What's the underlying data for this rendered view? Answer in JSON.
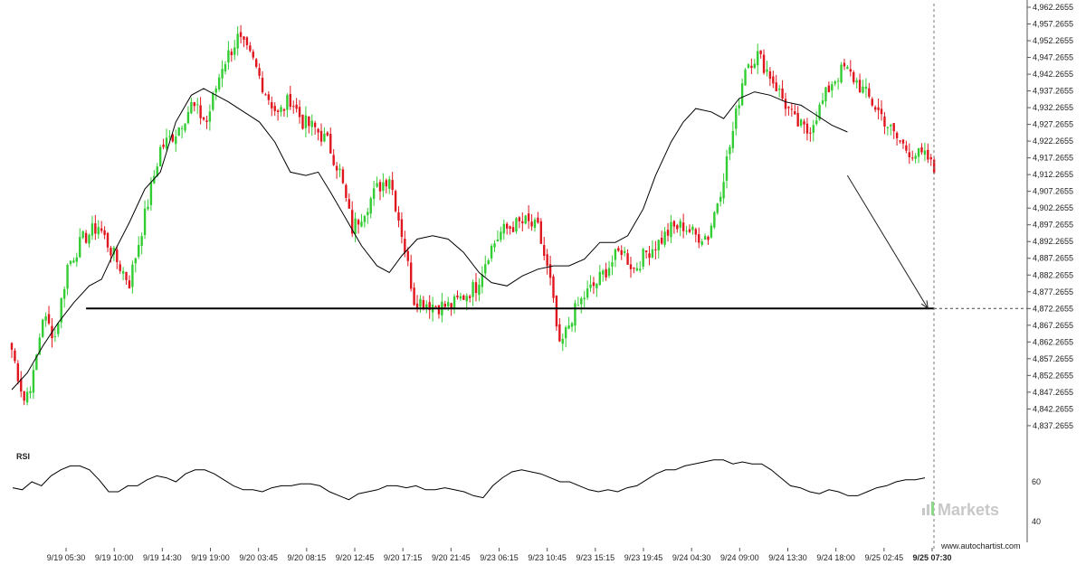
{
  "chart_data": {
    "type": "candlestick",
    "title": "",
    "price_axis": {
      "ylim": [
        4834.2655,
        4962.2655
      ],
      "ticks": [
        4837.2655,
        4842.2655,
        4847.2655,
        4852.2655,
        4857.2655,
        4862.2655,
        4867.2655,
        4872.2655,
        4877.2655,
        4882.2655,
        4887.2655,
        4892.2655,
        4897.2655,
        4902.2655,
        4907.2655,
        4912.2655,
        4917.2655,
        4922.2655,
        4927.2655,
        4932.2655,
        4937.2655,
        4942.2655,
        4947.2655,
        4952.2655,
        4957.2655,
        4962.2655
      ],
      "tick_labels": [
        "4,837.2655",
        "4,842.2655",
        "4,847.2655",
        "4,852.2655",
        "4,857.2655",
        "4,862.2655",
        "4,867.2655",
        "4,872.2655",
        "4,877.2655",
        "4,882.2655",
        "4,887.2655",
        "4,892.2655",
        "4,897.2655",
        "4,902.2655",
        "4,907.2655",
        "4,912.2655",
        "4,917.2655",
        "4,922.2655",
        "4,927.2655",
        "4,932.2655",
        "4,937.2655",
        "4,942.2655",
        "4,947.2655",
        "4,952.2655",
        "4,957.2655",
        "4,962.2655"
      ]
    },
    "time_axis": {
      "labels": [
        "9/19 05:30",
        "9/19 10:00",
        "9/19 14:30",
        "9/19 19:00",
        "9/20 03:45",
        "9/20 08:15",
        "9/20 12:45",
        "9/20 17:15",
        "9/20 21:45",
        "9/23 06:15",
        "9/23 10:45",
        "9/23 15:15",
        "9/23 19:45",
        "9/24 04:30",
        "9/24 09:00",
        "9/24 13:30",
        "9/24 18:00",
        "9/25 02:45",
        "9/25 07:30"
      ],
      "highlighted": "9/25 07:30",
      "bars_total": 300
    },
    "price_path": [
      [
        0,
        4860
      ],
      [
        4,
        4845
      ],
      [
        7,
        4852
      ],
      [
        10,
        4870
      ],
      [
        14,
        4864
      ],
      [
        18,
        4885
      ],
      [
        23,
        4893
      ],
      [
        28,
        4897
      ],
      [
        33,
        4888
      ],
      [
        38,
        4880
      ],
      [
        43,
        4900
      ],
      [
        48,
        4920
      ],
      [
        53,
        4925
      ],
      [
        58,
        4933
      ],
      [
        63,
        4928
      ],
      [
        68,
        4945
      ],
      [
        73,
        4953
      ],
      [
        78,
        4946
      ],
      [
        82,
        4937
      ],
      [
        86,
        4930
      ],
      [
        90,
        4935
      ],
      [
        94,
        4928
      ],
      [
        98,
        4926
      ],
      [
        102,
        4922
      ],
      [
        106,
        4913
      ],
      [
        110,
        4896
      ],
      [
        114,
        4902
      ],
      [
        118,
        4908
      ],
      [
        122,
        4912
      ],
      [
        126,
        4895
      ],
      [
        130,
        4875
      ],
      [
        134,
        4874
      ],
      [
        138,
        4873
      ],
      [
        142,
        4873
      ],
      [
        146,
        4876
      ],
      [
        150,
        4879
      ],
      [
        154,
        4889
      ],
      [
        158,
        4895
      ],
      [
        162,
        4897
      ],
      [
        166,
        4898
      ],
      [
        170,
        4896
      ],
      [
        174,
        4880
      ],
      [
        177,
        4860
      ],
      [
        181,
        4870
      ],
      [
        185,
        4876
      ],
      [
        189,
        4880
      ],
      [
        193,
        4885
      ],
      [
        197,
        4890
      ],
      [
        201,
        4884
      ],
      [
        205,
        4889
      ],
      [
        209,
        4892
      ],
      [
        213,
        4896
      ],
      [
        217,
        4897
      ],
      [
        221,
        4894
      ],
      [
        225,
        4894
      ],
      [
        229,
        4908
      ],
      [
        233,
        4925
      ],
      [
        237,
        4945
      ],
      [
        241,
        4948
      ],
      [
        245,
        4942
      ],
      [
        249,
        4935
      ],
      [
        253,
        4928
      ],
      [
        257,
        4925
      ],
      [
        261,
        4932
      ],
      [
        265,
        4940
      ],
      [
        269,
        4944
      ],
      [
        273,
        4940
      ],
      [
        277,
        4935
      ],
      [
        281,
        4930
      ],
      [
        285,
        4924
      ],
      [
        289,
        4920
      ],
      [
        293,
        4918
      ],
      [
        296,
        4917
      ],
      [
        298,
        4913
      ]
    ],
    "moving_average": [
      [
        0,
        4848
      ],
      [
        5,
        4853
      ],
      [
        10,
        4861
      ],
      [
        15,
        4868
      ],
      [
        20,
        4874
      ],
      [
        25,
        4879
      ],
      [
        29,
        4881
      ],
      [
        33,
        4889
      ],
      [
        38,
        4898
      ],
      [
        43,
        4908
      ],
      [
        48,
        4913
      ],
      [
        53,
        4928
      ],
      [
        58,
        4936
      ],
      [
        62,
        4938
      ],
      [
        66,
        4936
      ],
      [
        70,
        4934
      ],
      [
        75,
        4931
      ],
      [
        80,
        4928
      ],
      [
        85,
        4922
      ],
      [
        90,
        4913
      ],
      [
        95,
        4912
      ],
      [
        99,
        4913
      ],
      [
        103,
        4907
      ],
      [
        108,
        4899
      ],
      [
        113,
        4891
      ],
      [
        118,
        4885
      ],
      [
        122,
        4883
      ],
      [
        126,
        4888
      ],
      [
        131,
        4893
      ],
      [
        136,
        4894
      ],
      [
        141,
        4893
      ],
      [
        146,
        4889
      ],
      [
        151,
        4883
      ],
      [
        155,
        4880
      ],
      [
        160,
        4879
      ],
      [
        165,
        4882
      ],
      [
        170,
        4884
      ],
      [
        175,
        4885
      ],
      [
        180,
        4885
      ],
      [
        185,
        4887
      ],
      [
        190,
        4892
      ],
      [
        195,
        4892
      ],
      [
        199,
        4894
      ],
      [
        204,
        4902
      ],
      [
        208,
        4912
      ],
      [
        213,
        4922
      ],
      [
        217,
        4928
      ],
      [
        221,
        4932
      ],
      [
        226,
        4931
      ],
      [
        230,
        4929
      ],
      [
        235,
        4935
      ],
      [
        240,
        4937
      ],
      [
        245,
        4936
      ],
      [
        250,
        4934
      ],
      [
        255,
        4933
      ],
      [
        260,
        4930
      ],
      [
        265,
        4927
      ],
      [
        270,
        4925
      ]
    ],
    "support_level": 4872.2655,
    "support_start_index": 24,
    "forecast_arrow": {
      "from_index": 270,
      "from_price": 4912,
      "to_index": 296,
      "to_price": 4872.2655
    },
    "rsi": {
      "label": "RSI",
      "levels": [
        60,
        40
      ],
      "level_labels": [
        "60",
        "40"
      ],
      "values": [
        57,
        56,
        60,
        58,
        63,
        66,
        68,
        68,
        66,
        61,
        55,
        55,
        58,
        58,
        61,
        63,
        62,
        60,
        64,
        66,
        66,
        64,
        61,
        58,
        56,
        56,
        55,
        57,
        58,
        58,
        59,
        59,
        58,
        55,
        53,
        51,
        54,
        55,
        56,
        58,
        58,
        57,
        58,
        56,
        56,
        57,
        56,
        55,
        53,
        52,
        58,
        62,
        65,
        66,
        65,
        64,
        62,
        60,
        60,
        58,
        56,
        55,
        56,
        55,
        57,
        58,
        61,
        64,
        66,
        66,
        68,
        69,
        70,
        71,
        71,
        69,
        70,
        69,
        69,
        66,
        62,
        58,
        57,
        55,
        54,
        56,
        55,
        53,
        53,
        55,
        57,
        58,
        60,
        61,
        61,
        62
      ]
    },
    "watermark": "Markets",
    "attribution": "www.autochartist.com"
  },
  "colors": {
    "up": "#32cd32",
    "down": "#e0161e",
    "axis": "#555555",
    "grid_text": "#222222",
    "ma": "#000000",
    "support": "#000000"
  }
}
